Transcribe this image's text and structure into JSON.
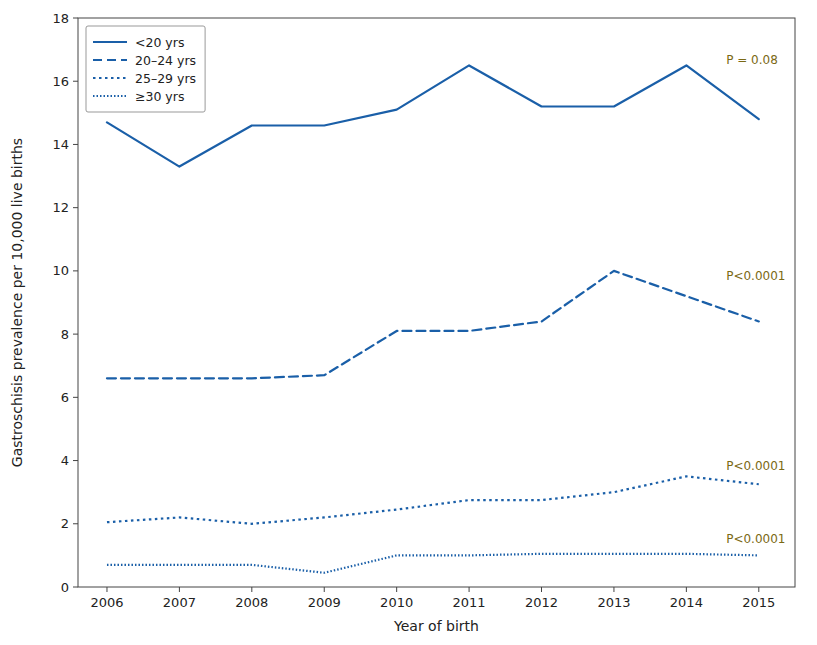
{
  "chart_data": {
    "type": "line",
    "x_label": "Year of birth",
    "y_label": "Gastroschisis prevalence per 10,000 live births",
    "x": [
      2006,
      2007,
      2008,
      2009,
      2010,
      2011,
      2012,
      2013,
      2014,
      2015
    ],
    "series": [
      {
        "name": "<20 yrs",
        "color": "#1a5fa8",
        "line_style": "solid",
        "values": [
          14.7,
          13.3,
          14.6,
          14.6,
          15.1,
          16.5,
          15.2,
          15.2,
          16.5,
          14.8
        ]
      },
      {
        "name": "20–24 yrs",
        "color": "#1a5fa8",
        "line_style": "dashed",
        "values": [
          6.6,
          6.6,
          6.6,
          6.7,
          8.1,
          8.1,
          8.4,
          10.0,
          9.2,
          8.4
        ]
      },
      {
        "name": "25–29 yrs",
        "color": "#1a5fa8",
        "line_style": "dotted",
        "values": [
          2.05,
          2.2,
          2.0,
          2.2,
          2.45,
          2.75,
          2.75,
          3.0,
          3.5,
          3.25
        ]
      },
      {
        "name": "≥30 yrs",
        "color": "#1a5fa8",
        "line_style": "densely_dotted",
        "values": [
          0.7,
          0.7,
          0.7,
          0.45,
          1.0,
          1.0,
          1.05,
          1.05,
          1.05,
          1.0
        ]
      }
    ],
    "annotations": [
      {
        "text": "P = 0.08",
        "x": 2014.55,
        "y": 16.7,
        "color": "#7B6914"
      },
      {
        "text": "P<0.0001",
        "x": 2014.55,
        "y": 9.85,
        "color": "#7B6914"
      },
      {
        "text": "P<0.0001",
        "x": 2014.55,
        "y": 3.85,
        "color": "#7B6914"
      },
      {
        "text": "P<0.0001",
        "x": 2014.55,
        "y": 1.55,
        "color": "#7B6914"
      }
    ],
    "xlim": [
      2005.6,
      2015.5
    ],
    "xticks": [
      2006,
      2007,
      2008,
      2009,
      2010,
      2011,
      2012,
      2013,
      2014,
      2015
    ],
    "ylim": [
      0,
      18
    ],
    "yticks": [
      0,
      2,
      4,
      6,
      8,
      10,
      12,
      14,
      16,
      18
    ],
    "grid": false,
    "legend": "upper left"
  }
}
